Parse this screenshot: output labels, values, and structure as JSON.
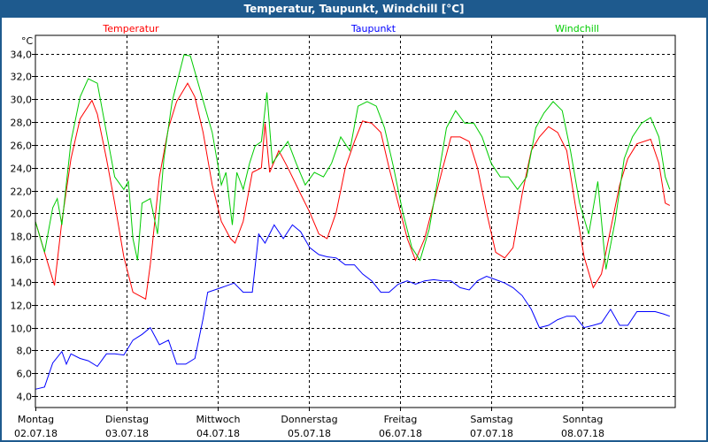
{
  "window": {
    "title": "Temperatur, Taupunkt, Windchill [°C]"
  },
  "chart_data": {
    "type": "line",
    "title": "Temperatur, Taupunkt, Windchill [°C]",
    "ylabel": "°C",
    "xlabel": "",
    "xlim": [
      0,
      7.02
    ],
    "ylim": [
      3.0,
      35.6
    ],
    "x_unit": "days since Montag 02.07.18 00:00",
    "grid": true,
    "yticks": [
      4,
      6,
      8,
      10,
      12,
      14,
      16,
      18,
      20,
      22,
      24,
      26,
      28,
      30,
      32,
      34
    ],
    "ytick_labels": [
      "4,0",
      "6,0",
      "8,0",
      "10,0",
      "12,0",
      "14,0",
      "16,0",
      "18,0",
      "20,0",
      "22,0",
      "24,0",
      "26,0",
      "28,0",
      "30,0",
      "32,0",
      "34,0"
    ],
    "xticks": [
      {
        "day": 0,
        "weekday": "Montag",
        "date": "02.07.18"
      },
      {
        "day": 1,
        "weekday": "Dienstag",
        "date": "03.07.18"
      },
      {
        "day": 2,
        "weekday": "Mittwoch",
        "date": "04.07.18"
      },
      {
        "day": 3,
        "weekday": "Donnerstag",
        "date": "05.07.18"
      },
      {
        "day": 4,
        "weekday": "Freitag",
        "date": "06.07.18"
      },
      {
        "day": 5,
        "weekday": "Samstag",
        "date": "07.07.18"
      },
      {
        "day": 6,
        "weekday": "Sonntag",
        "date": "08.07.18"
      }
    ],
    "legend_placement": "top",
    "series": [
      {
        "name": "Temperatur",
        "color": "#ff0000",
        "x": [
          0,
          0.1,
          0.21,
          0.29,
          0.39,
          0.49,
          0.62,
          0.68,
          0.78,
          0.87,
          0.97,
          1.07,
          1.21,
          1.26,
          1.36,
          1.46,
          1.55,
          1.67,
          1.75,
          1.84,
          1.94,
          2.04,
          2.14,
          2.19,
          2.28,
          2.38,
          2.48,
          2.52,
          2.57,
          2.67,
          2.77,
          2.91,
          3.01,
          3.11,
          3.2,
          3.3,
          3.4,
          3.5,
          3.59,
          3.69,
          3.79,
          3.88,
          3.98,
          4.08,
          4.17,
          4.27,
          4.37,
          4.47,
          4.56,
          4.66,
          4.76,
          4.85,
          4.95,
          5.05,
          5.15,
          5.24,
          5.34,
          5.44,
          5.53,
          5.63,
          5.73,
          5.83,
          5.92,
          6.02,
          6.12,
          6.21,
          6.31,
          6.41,
          6.5,
          6.6,
          6.75,
          6.84,
          6.91,
          6.96
        ],
        "y": [
          19.3,
          16.6,
          13.7,
          19.3,
          24.8,
          28.3,
          29.9,
          28.7,
          24.8,
          20.9,
          16.2,
          13.1,
          12.5,
          15.5,
          23.2,
          27.5,
          29.8,
          31.4,
          30.2,
          27.1,
          22.5,
          19.3,
          17.8,
          17.4,
          19.3,
          23.6,
          24.0,
          27.9,
          23.6,
          25.5,
          24.0,
          21.7,
          20.1,
          18.2,
          17.8,
          20.1,
          24.0,
          26.3,
          28.1,
          27.9,
          27.1,
          24.0,
          20.9,
          17.8,
          15.9,
          17.8,
          20.9,
          24.0,
          26.7,
          26.7,
          26.3,
          24.0,
          20.1,
          16.6,
          16.1,
          17.0,
          21.7,
          25.5,
          26.7,
          27.6,
          27.1,
          25.5,
          20.9,
          16.2,
          13.5,
          14.7,
          18.6,
          22.5,
          24.8,
          26.1,
          26.5,
          24.4,
          20.9,
          20.7
        ]
      },
      {
        "name": "Taupunkt",
        "color": "#0000ff",
        "x": [
          0,
          0.1,
          0.19,
          0.29,
          0.34,
          0.39,
          0.49,
          0.58,
          0.68,
          0.78,
          0.87,
          0.97,
          1.07,
          1.17,
          1.26,
          1.36,
          1.46,
          1.55,
          1.65,
          1.75,
          1.84,
          1.89,
          2.04,
          2.18,
          2.28,
          2.38,
          2.45,
          2.52,
          2.62,
          2.72,
          2.82,
          2.91,
          3.01,
          3.11,
          3.2,
          3.3,
          3.4,
          3.5,
          3.59,
          3.69,
          3.79,
          3.88,
          3.98,
          4.08,
          4.17,
          4.27,
          4.37,
          4.47,
          4.56,
          4.66,
          4.76,
          4.85,
          4.95,
          5.05,
          5.15,
          5.24,
          5.34,
          5.44,
          5.53,
          5.63,
          5.73,
          5.83,
          5.92,
          6.02,
          6.12,
          6.21,
          6.31,
          6.41,
          6.5,
          6.6,
          6.7,
          6.8,
          6.89,
          6.96
        ],
        "y": [
          4.6,
          4.8,
          6.9,
          7.9,
          6.8,
          7.7,
          7.3,
          7.1,
          6.6,
          7.7,
          7.7,
          7.6,
          8.9,
          9.4,
          10.0,
          8.5,
          8.9,
          6.8,
          6.8,
          7.3,
          10.8,
          13.1,
          13.5,
          13.9,
          13.1,
          13.1,
          18.2,
          17.4,
          19.0,
          17.8,
          19.0,
          18.4,
          17.0,
          16.4,
          16.2,
          16.1,
          15.5,
          15.5,
          14.7,
          14.1,
          13.1,
          13.1,
          13.8,
          14.1,
          13.8,
          14.1,
          14.2,
          14.1,
          14.1,
          13.5,
          13.3,
          14.1,
          14.5,
          14.2,
          13.9,
          13.5,
          12.8,
          11.6,
          10.0,
          10.2,
          10.7,
          11.0,
          11.0,
          10.0,
          10.2,
          10.4,
          11.6,
          10.2,
          10.2,
          11.4,
          11.4,
          11.4,
          11.2,
          11.0
        ]
      },
      {
        "name": "Windchill",
        "color": "#00cc00",
        "x": [
          0,
          0.1,
          0.19,
          0.24,
          0.29,
          0.39,
          0.49,
          0.58,
          0.68,
          0.78,
          0.87,
          0.97,
          1.02,
          1.07,
          1.12,
          1.17,
          1.26,
          1.34,
          1.41,
          1.5,
          1.63,
          1.7,
          1.8,
          1.94,
          2.04,
          2.09,
          2.16,
          2.21,
          2.28,
          2.35,
          2.41,
          2.48,
          2.54,
          2.6,
          2.67,
          2.77,
          2.86,
          2.96,
          3.06,
          3.16,
          3.25,
          3.35,
          3.45,
          3.54,
          3.64,
          3.74,
          3.83,
          3.93,
          4.03,
          4.13,
          4.22,
          4.32,
          4.42,
          4.51,
          4.61,
          4.71,
          4.81,
          4.9,
          5.0,
          5.1,
          5.19,
          5.29,
          5.39,
          5.49,
          5.58,
          5.68,
          5.78,
          5.87,
          5.97,
          6.07,
          6.17,
          6.26,
          6.36,
          6.46,
          6.55,
          6.65,
          6.75,
          6.84,
          6.91,
          6.96
        ],
        "y": [
          19.3,
          16.6,
          20.5,
          21.3,
          19.0,
          26.3,
          30.2,
          31.8,
          31.4,
          27.1,
          23.2,
          22.1,
          22.8,
          17.8,
          15.9,
          20.9,
          21.3,
          18.2,
          24.8,
          29.8,
          33.9,
          33.8,
          31.0,
          27.1,
          22.5,
          23.6,
          19.0,
          23.6,
          22.1,
          24.4,
          25.9,
          26.3,
          30.6,
          24.4,
          25.2,
          26.3,
          24.4,
          22.5,
          23.6,
          23.2,
          24.4,
          26.7,
          25.5,
          29.4,
          29.8,
          29.4,
          27.5,
          24.0,
          20.1,
          17.0,
          15.9,
          18.6,
          23.2,
          27.5,
          29.0,
          27.9,
          27.9,
          26.7,
          24.4,
          23.2,
          23.2,
          22.1,
          23.2,
          27.5,
          28.8,
          29.8,
          29.0,
          25.5,
          20.9,
          18.2,
          22.8,
          15.1,
          19.3,
          24.8,
          26.7,
          27.9,
          28.4,
          26.7,
          23.2,
          22.1
        ]
      }
    ]
  }
}
